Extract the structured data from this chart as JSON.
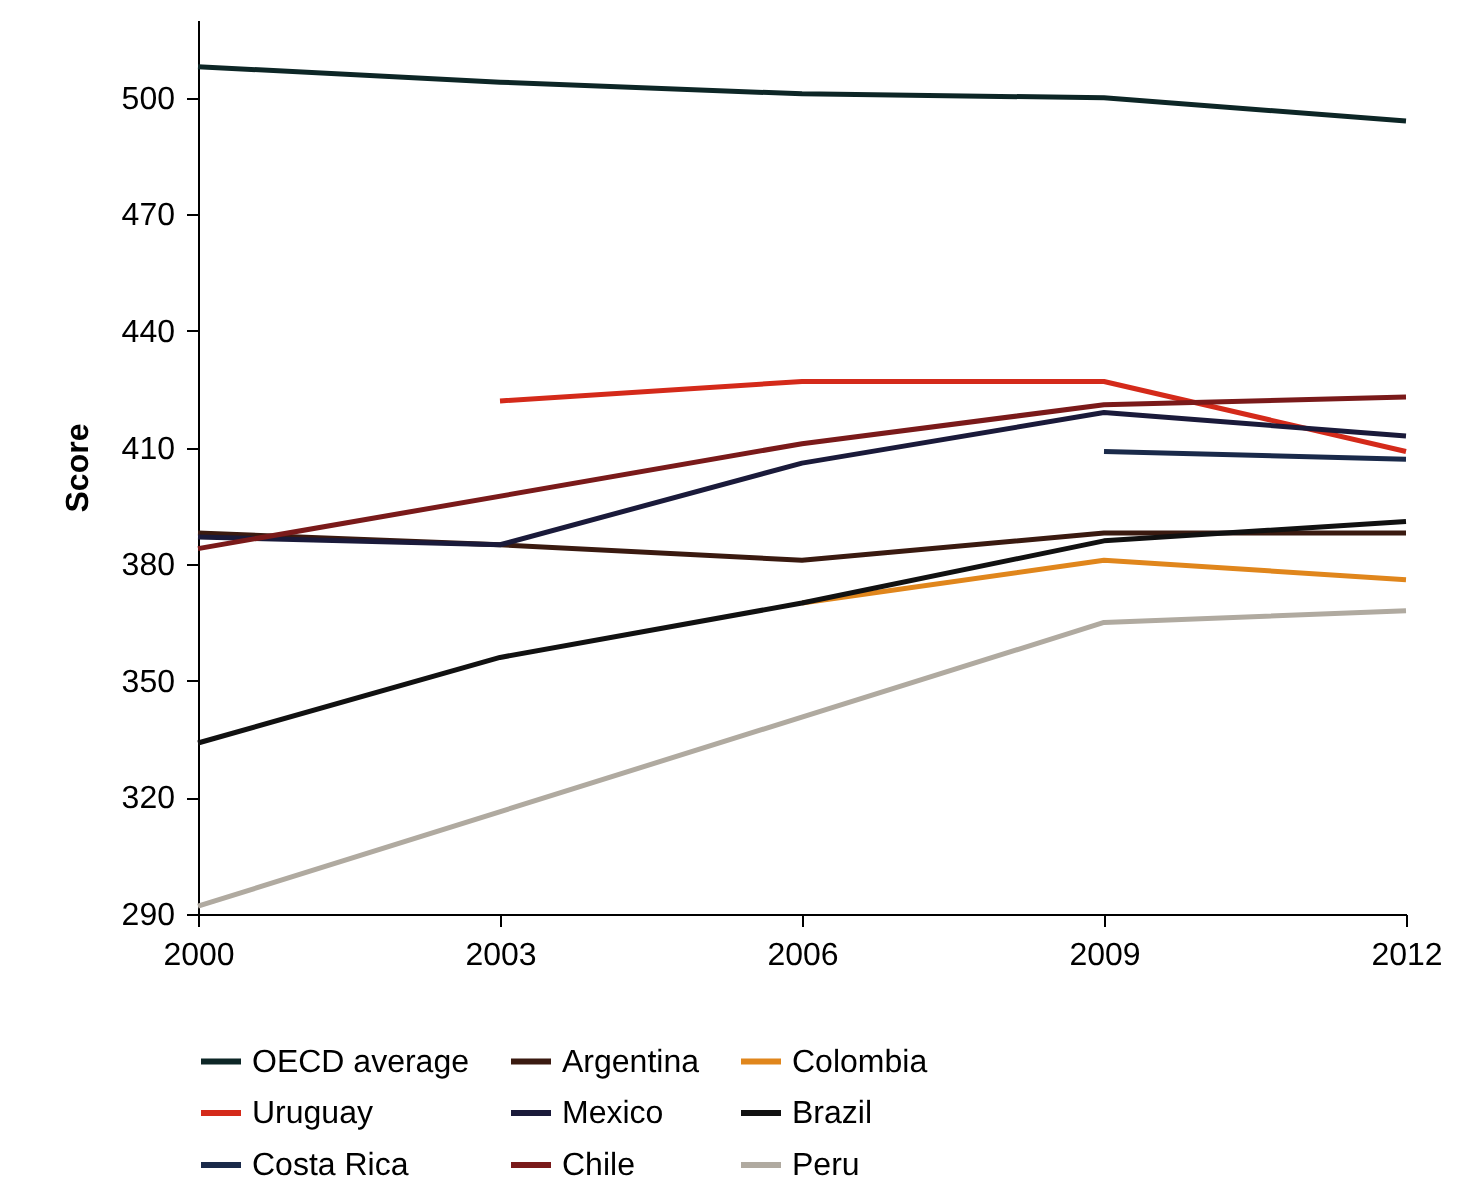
{
  "chart_data": {
    "type": "line",
    "ylabel": "Score",
    "xlim": [
      2000,
      2012
    ],
    "xticks": [
      2000,
      2003,
      2006,
      2009,
      2012
    ],
    "ylim": [
      290,
      520
    ],
    "yticks": [
      290,
      320,
      350,
      380,
      410,
      440,
      470,
      500
    ],
    "legend": "bottom",
    "series": [
      {
        "name": "OECD average",
        "color": "#0d2626",
        "x": [
          2000,
          2003,
          2006,
          2009,
          2012
        ],
        "values": [
          508,
          504,
          501,
          500,
          494
        ]
      },
      {
        "name": "Argentina",
        "color": "#3a1a10",
        "x": [
          2000,
          2003,
          2006,
          2009,
          2012
        ],
        "values": [
          388,
          385,
          381,
          388,
          388
        ]
      },
      {
        "name": "Colombia",
        "color": "#e0861c",
        "x": [
          2006,
          2009,
          2012
        ],
        "values": [
          370,
          381,
          376
        ]
      },
      {
        "name": "Uruguay",
        "color": "#d42a1a",
        "x": [
          2003,
          2006,
          2009,
          2012
        ],
        "values": [
          422,
          427,
          427,
          409
        ]
      },
      {
        "name": "Mexico",
        "color": "#1a1a3a",
        "x": [
          2000,
          2003,
          2006,
          2009,
          2012
        ],
        "values": [
          387,
          385,
          406,
          419,
          413
        ]
      },
      {
        "name": "Brazil",
        "color": "#111111",
        "x": [
          2000,
          2003,
          2006,
          2009,
          2012
        ],
        "values": [
          334,
          356,
          370,
          386,
          391
        ]
      },
      {
        "name": "Costa Rica",
        "color": "#1a2a4a",
        "x": [
          2009,
          2012
        ],
        "values": [
          409,
          407
        ]
      },
      {
        "name": "Chile",
        "color": "#7a1a1a",
        "x": [
          2000,
          2006,
          2009,
          2012
        ],
        "values": [
          384,
          411,
          421,
          423
        ]
      },
      {
        "name": "Peru",
        "color": "#b0aaa0",
        "x": [
          2000,
          2009,
          2012
        ],
        "values": [
          292,
          365,
          368
        ]
      }
    ]
  }
}
